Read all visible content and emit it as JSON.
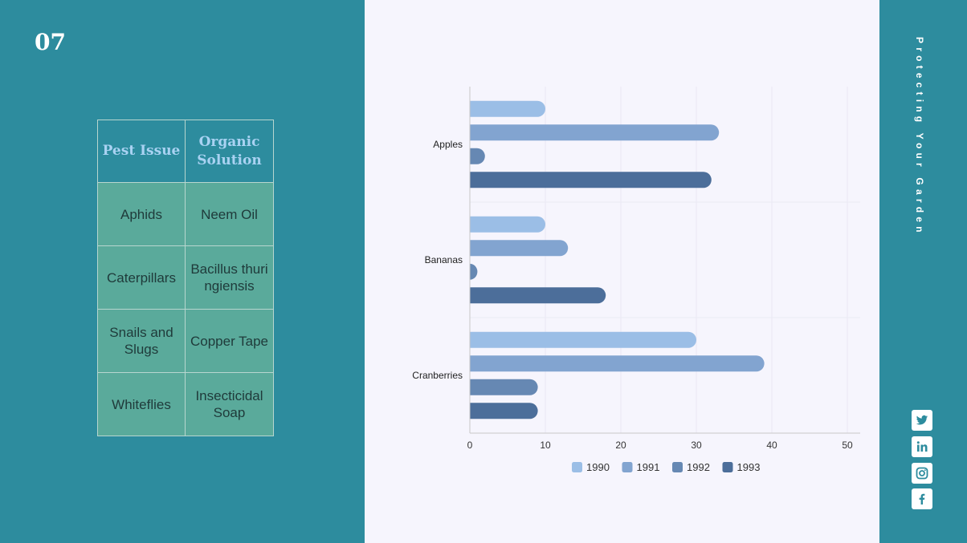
{
  "slide": {
    "number": "07",
    "side_title": "Protecting Your Garden"
  },
  "table": {
    "headers": [
      "Pest Issue",
      "Organic Solution"
    ],
    "rows": [
      [
        "Aphids",
        "Neem Oil"
      ],
      [
        "Caterpillars",
        "Bacillus thuringiensis"
      ],
      [
        "Snails and Slugs",
        "Copper Tape"
      ],
      [
        "Whiteflies",
        "Insecticidal Soap"
      ]
    ]
  },
  "social": [
    "twitter-icon",
    "linkedin-icon",
    "instagram-icon",
    "facebook-icon"
  ],
  "chart_data": {
    "type": "bar",
    "orientation": "horizontal",
    "categories": [
      "Apples",
      "Bananas",
      "Cranberries"
    ],
    "series": [
      {
        "name": "1990",
        "values": [
          10,
          10,
          30
        ],
        "color": "#9bbee6"
      },
      {
        "name": "1991",
        "values": [
          33,
          13,
          39
        ],
        "color": "#82a4d0"
      },
      {
        "name": "1992",
        "values": [
          2,
          1,
          9
        ],
        "color": "#6688b3"
      },
      {
        "name": "1993",
        "values": [
          32,
          18,
          9
        ],
        "color": "#4c6e9a"
      }
    ],
    "xlim": [
      0,
      50
    ],
    "x_ticks": [
      "0",
      "10",
      "20",
      "30",
      "40",
      "50"
    ],
    "legend_position": "bottom",
    "grid": true
  }
}
